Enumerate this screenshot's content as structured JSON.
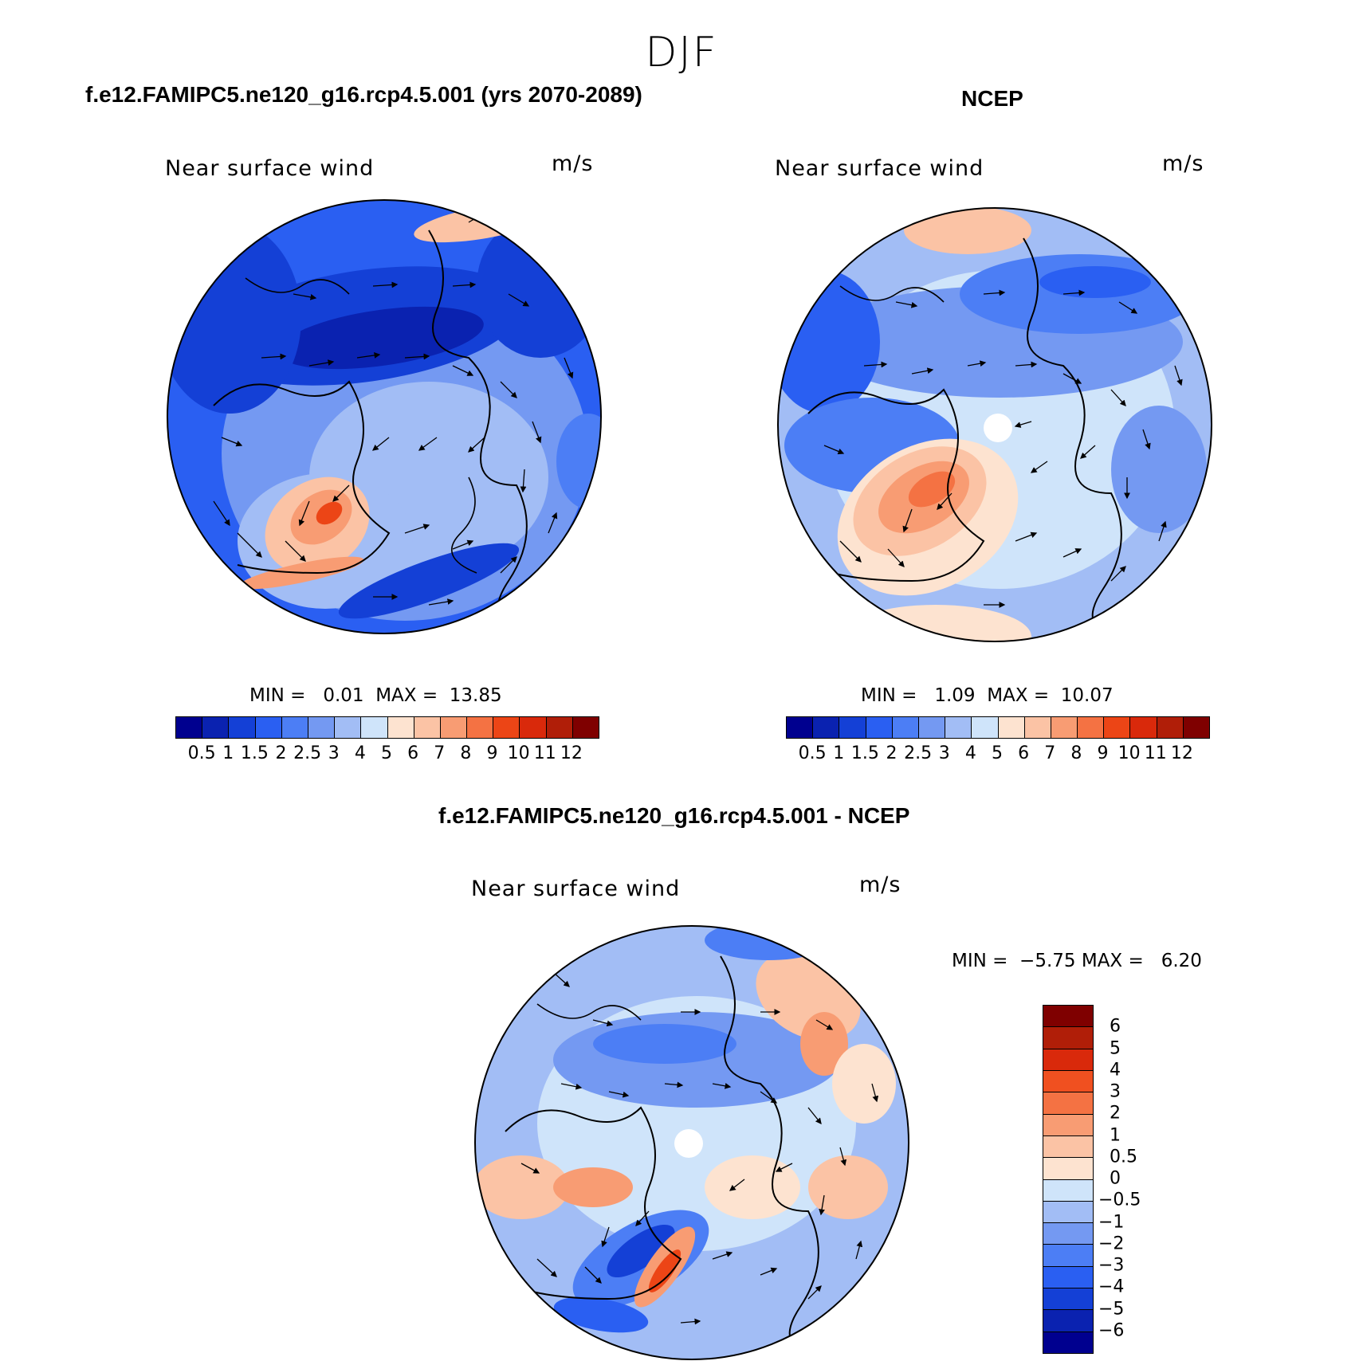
{
  "figure": {
    "season": "DJF"
  },
  "panels": [
    {
      "id": "model",
      "title": "f.e12.FAMIPC5.ne120_g16.rcp4.5.001 (yrs 2070-2089)",
      "left_label": "Near surface wind",
      "right_label": "m/s",
      "min_label": "MIN =",
      "min_value": "0.01",
      "max_label": "MAX =",
      "max_value": "13.85"
    },
    {
      "id": "obs",
      "title": "NCEP",
      "left_label": "Near surface wind",
      "right_label": "m/s",
      "min_label": "MIN =",
      "min_value": "1.09",
      "max_label": "MAX =",
      "max_value": "10.07"
    },
    {
      "id": "diff",
      "title": "f.e12.FAMIPC5.ne120_g16.rcp4.5.001 - NCEP",
      "left_label": "Near surface wind",
      "right_label": "m/s",
      "min_label": "MIN =",
      "min_value": "−5.75",
      "max_label": "MAX =",
      "max_value": "6.20"
    }
  ],
  "colorbars": {
    "speed": {
      "colors": [
        "#00008f",
        "#0a22b0",
        "#1440d6",
        "#2a5ff2",
        "#4c7ef5",
        "#7499f2",
        "#a2bdf5",
        "#cfe4fa",
        "#fde3d0",
        "#fbc3a5",
        "#f89c73",
        "#f47243",
        "#ec4516",
        "#d9290b",
        "#b01e08",
        "#7f0000"
      ],
      "tick_labels": [
        "0.5",
        "1",
        "1.5",
        "2",
        "2.5",
        "3",
        "4",
        "5",
        "6",
        "7",
        "8",
        "9",
        "10",
        "11",
        "12"
      ]
    },
    "difference": {
      "colors": [
        "#7f0000",
        "#b01e08",
        "#d9290b",
        "#f05020",
        "#f47243",
        "#f89c73",
        "#fbc3a5",
        "#fde3d0",
        "#cfe4fa",
        "#a2bdf5",
        "#7499f2",
        "#4c7ef5",
        "#2a5ff2",
        "#1440d6",
        "#0a22b0",
        "#00008f"
      ],
      "tick_labels": [
        "6",
        "5",
        "4",
        "3",
        "2",
        "1",
        "0.5",
        "0",
        "−0.5",
        "−1",
        "−2",
        "−3",
        "−4",
        "−5",
        "−6"
      ]
    }
  },
  "map_style": {
    "projection": "polar stereographic (north)",
    "fill_type": "filled contours with wind vectors and coastlines"
  }
}
